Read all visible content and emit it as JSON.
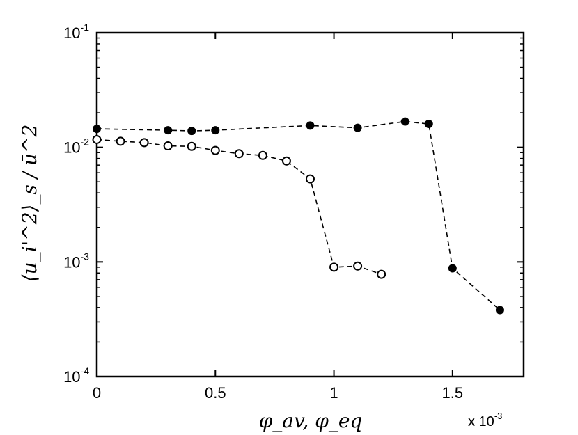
{
  "chart_data": {
    "type": "line",
    "title": "",
    "xlabel": "φ_av, φ_eq",
    "ylabel": "⟨u_i'^2⟩_s / ū^2",
    "x_multiplier": "x 10",
    "x_multiplier_exp": "-3",
    "xlim": [
      0,
      1.8
    ],
    "ylim": [
      0.0001,
      0.1
    ],
    "yscale": "log",
    "grid": false,
    "xticks": [
      {
        "value": 0,
        "label": "0"
      },
      {
        "value": 0.5,
        "label": "0.5"
      },
      {
        "value": 1,
        "label": "1"
      },
      {
        "value": 1.5,
        "label": "1.5"
      }
    ],
    "yticks": [
      {
        "value": 0.1,
        "base": "10",
        "exp": "-1"
      },
      {
        "value": 0.01,
        "base": "10",
        "exp": "-2"
      },
      {
        "value": 0.001,
        "base": "10",
        "exp": "-3"
      },
      {
        "value": 0.0001,
        "base": "10",
        "exp": "-4"
      }
    ],
    "series": [
      {
        "name": "phi_eq (filled)",
        "marker": "filled-circle",
        "line": "dashed",
        "x": [
          0,
          0.3,
          0.4,
          0.5,
          0.9,
          1.1,
          1.3,
          1.4,
          1.5,
          1.7
        ],
        "y": [
          0.0145,
          0.0141,
          0.0139,
          0.0141,
          0.0155,
          0.0148,
          0.0168,
          0.016,
          0.00088,
          0.00038
        ]
      },
      {
        "name": "phi_av (open)",
        "marker": "open-circle",
        "line": "dashed",
        "x": [
          0,
          0.1,
          0.2,
          0.3,
          0.4,
          0.5,
          0.6,
          0.7,
          0.8,
          0.9,
          1.0,
          1.1,
          1.2
        ],
        "y": [
          0.0117,
          0.0113,
          0.011,
          0.0103,
          0.0102,
          0.0094,
          0.0088,
          0.0085,
          0.0076,
          0.0053,
          0.0009,
          0.00092,
          0.00078
        ]
      }
    ]
  }
}
